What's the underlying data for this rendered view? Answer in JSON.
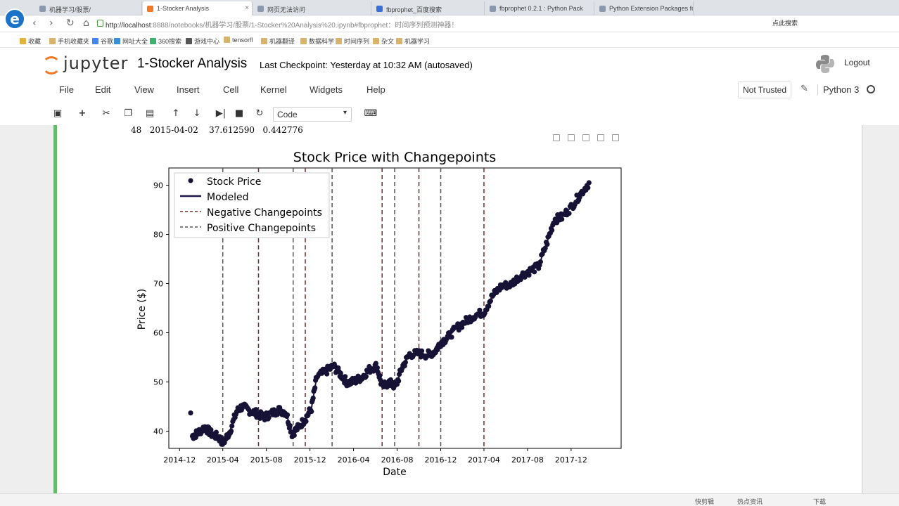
{
  "browser": {
    "tabs": [
      {
        "label": "机器学习/股票/"
      },
      {
        "label": "1-Stocker Analysis"
      },
      {
        "label": "网页无法访问"
      },
      {
        "label": "fbprophet_百度搜索"
      },
      {
        "label": "fbprophet 0.2.1 : Python Pack"
      },
      {
        "label": "Python Extension Packages fo"
      }
    ],
    "url": {
      "host": "http://localhost",
      "path": ":8888/notebooks/机器学习/股票/1-Stocker%20Analysis%20.ipynb#fbprophet：时间序列预测神器！"
    },
    "search_placeholder": "点此搜索",
    "bookmarks": [
      {
        "label": "收藏"
      },
      {
        "label": "手机收藏夹"
      },
      {
        "label": "谷歌"
      },
      {
        "label": "网址大全"
      },
      {
        "label": "360搜索"
      },
      {
        "label": "游戏中心"
      },
      {
        "label": "tensorfl"
      },
      {
        "label": "机器翻译"
      },
      {
        "label": "数据科学"
      },
      {
        "label": "时间序列"
      },
      {
        "label": "杂文"
      },
      {
        "label": "机器学习"
      }
    ]
  },
  "jupyter": {
    "logo_text": "jupyter",
    "notebook_title": "1-Stocker Analysis",
    "checkpoint": "Last Checkpoint: Yesterday at 10:32 AM (autosaved)",
    "logout": "Logout",
    "menu": [
      "File",
      "Edit",
      "View",
      "Insert",
      "Cell",
      "Kernel",
      "Widgets",
      "Help"
    ],
    "trusted": "Not Trusted",
    "kernel": "Python 3",
    "cell_type": "Code",
    "toolbar_icons": [
      "save-icon",
      "plus-icon",
      "scissors-icon",
      "copy-icon",
      "paste-icon",
      "arrow-up-icon",
      "arrow-down-icon",
      "step-forward-icon",
      "stop-icon",
      "restart-icon",
      "keyboard-icon"
    ]
  },
  "cell_output": {
    "row_text": "48   2015-04-02    37.612590   0.442776"
  },
  "chart_data": {
    "type": "scatter",
    "title": "Stock Price with Changepoints",
    "xlabel": "Date",
    "ylabel": "Price ($)",
    "x_ticks": [
      "2014-12",
      "2015-04",
      "2015-08",
      "2015-12",
      "2016-04",
      "2016-08",
      "2016-12",
      "2017-04",
      "2017-08",
      "2017-12"
    ],
    "y_ticks": [
      40,
      50,
      60,
      70,
      80,
      90
    ],
    "xlim": [
      "2014-11-01",
      "2018-04-20"
    ],
    "ylim": [
      36.5,
      93.5
    ],
    "legend": {
      "position": "top-left",
      "entries": [
        "Stock Price",
        "Modeled",
        "Negative Changepoints",
        "Positive Changepoints"
      ]
    },
    "colors": {
      "points": "#161236",
      "modeled": "#1f1746",
      "negative_changepoints": "#7a2a2a",
      "positive_changepoints": "#555555"
    },
    "changepoints": [
      "2015-04-01",
      "2015-07-10",
      "2015-10-15",
      "2015-11-18",
      "2016-02-01",
      "2016-06-20",
      "2016-07-25",
      "2016-10-01",
      "2016-12-01",
      "2017-04-01"
    ],
    "price_path": [
      [
        "2015-01-06",
        39.0
      ],
      [
        "2015-01-20",
        39.6
      ],
      [
        "2015-02-10",
        40.8
      ],
      [
        "2015-03-01",
        39.4
      ],
      [
        "2015-03-20",
        38.8
      ],
      [
        "2015-04-02",
        37.6
      ],
      [
        "2015-04-20",
        39.8
      ],
      [
        "2015-05-10",
        44.0
      ],
      [
        "2015-05-25",
        45.0
      ],
      [
        "2015-06-15",
        44.2
      ],
      [
        "2015-07-05",
        43.6
      ],
      [
        "2015-07-25",
        42.8
      ],
      [
        "2015-08-15",
        43.6
      ],
      [
        "2015-09-05",
        44.3
      ],
      [
        "2015-09-25",
        43.8
      ],
      [
        "2015-10-12",
        39.5
      ],
      [
        "2015-10-30",
        40.8
      ],
      [
        "2015-11-18",
        42.5
      ],
      [
        "2015-12-05",
        44.6
      ],
      [
        "2015-12-20",
        51.0
      ],
      [
        "2016-01-15",
        52.2
      ],
      [
        "2016-02-05",
        53.2
      ],
      [
        "2016-02-25",
        51.5
      ],
      [
        "2016-03-15",
        49.8
      ],
      [
        "2016-04-05",
        50.2
      ],
      [
        "2016-04-25",
        51.0
      ],
      [
        "2016-05-15",
        52.5
      ],
      [
        "2016-06-05",
        53.3
      ],
      [
        "2016-06-20",
        49.0
      ],
      [
        "2016-07-10",
        49.9
      ],
      [
        "2016-07-28",
        49.0
      ],
      [
        "2016-08-15",
        53.0
      ],
      [
        "2016-09-05",
        55.6
      ],
      [
        "2016-10-01",
        55.8
      ],
      [
        "2016-10-25",
        55.5
      ],
      [
        "2016-11-15",
        56.2
      ],
      [
        "2016-12-01",
        58.0
      ],
      [
        "2016-12-20",
        59.0
      ],
      [
        "2017-01-15",
        61.0
      ],
      [
        "2017-02-10",
        62.4
      ],
      [
        "2017-03-05",
        63.5
      ],
      [
        "2017-04-01",
        64.2
      ],
      [
        "2017-04-25",
        67.5
      ],
      [
        "2017-05-20",
        69.5
      ],
      [
        "2017-06-15",
        69.8
      ],
      [
        "2017-07-10",
        71.5
      ],
      [
        "2017-08-05",
        72.5
      ],
      [
        "2017-09-01",
        73.5
      ],
      [
        "2017-09-25",
        78.5
      ],
      [
        "2017-10-15",
        83.0
      ],
      [
        "2017-11-05",
        83.5
      ],
      [
        "2017-12-01",
        85.5
      ],
      [
        "2017-12-25",
        88.0
      ],
      [
        "2018-01-20",
        90.5
      ]
    ]
  },
  "taskbar": {
    "items": [
      {
        "label": "快剪辑"
      },
      {
        "label": "热点资讯"
      },
      {
        "label": "下载"
      }
    ]
  }
}
